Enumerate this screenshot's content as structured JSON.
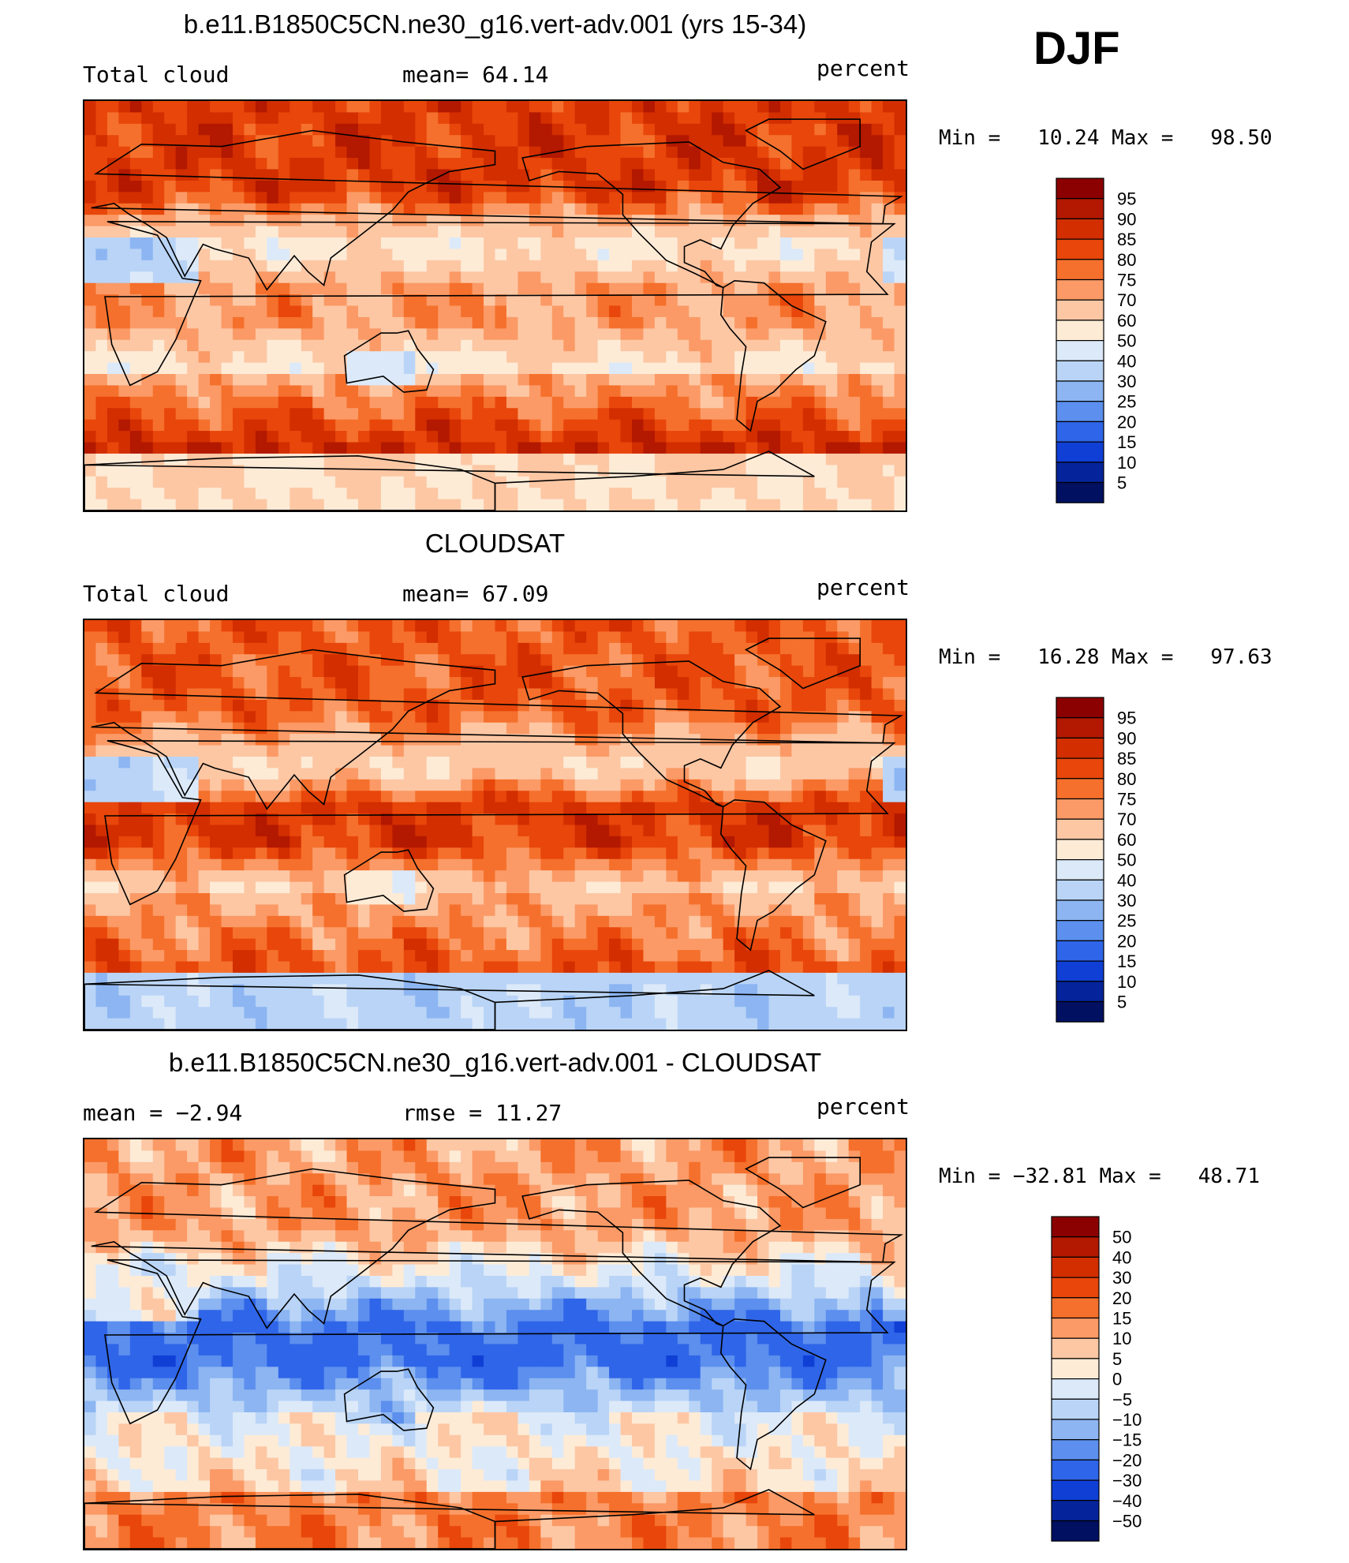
{
  "season": "DJF",
  "chart_data": [
    {
      "type": "heatmap",
      "title": "b.e11.B1850C5CN.ne30_g16.vert-adv.001 (yrs 15-34)",
      "left_label": "Total cloud",
      "center_label": "mean=   64.14",
      "right_label": "percent",
      "mean": 64.14,
      "min": 10.24,
      "max": 98.5,
      "minmax_text": "Min =   10.24 Max =   98.50",
      "levels": [
        "95",
        "90",
        "85",
        "80",
        "75",
        "70",
        "60",
        "50",
        "40",
        "30",
        "25",
        "20",
        "15",
        "10",
        "5"
      ],
      "colors": [
        "#8b0000",
        "#b31800",
        "#d22e00",
        "#e8460a",
        "#f5702c",
        "#fb9a66",
        "#fdc7a4",
        "#fdebd6",
        "#dce9f9",
        "#b9d4f6",
        "#8cb5f2",
        "#5c8fee",
        "#2f65e8",
        "#103fd6",
        "#05249c",
        "#011060"
      ],
      "region_values": {
        "north_band": 85,
        "subtropics": 55,
        "itcz": 72,
        "southern_ocean": 90,
        "antarctic": 60,
        "sahara": 30,
        "australia": 35
      }
    },
    {
      "type": "heatmap",
      "title": "CLOUDSAT",
      "left_label": "Total cloud",
      "center_label": "mean=   67.09",
      "right_label": "percent",
      "mean": 67.09,
      "min": 16.28,
      "max": 97.63,
      "minmax_text": "Min =   16.28 Max =   97.63",
      "levels": [
        "95",
        "90",
        "85",
        "80",
        "75",
        "70",
        "60",
        "50",
        "40",
        "30",
        "25",
        "20",
        "15",
        "10",
        "5"
      ],
      "colors": [
        "#8b0000",
        "#b31800",
        "#d22e00",
        "#e8460a",
        "#f5702c",
        "#fb9a66",
        "#fdc7a4",
        "#fdebd6",
        "#dce9f9",
        "#b9d4f6",
        "#8cb5f2",
        "#5c8fee",
        "#2f65e8",
        "#103fd6",
        "#05249c",
        "#011060"
      ],
      "region_values": {
        "north_band": 80,
        "subtropics": 60,
        "itcz": 85,
        "southern_ocean": 82,
        "antarctic": 35,
        "sahara": 28,
        "australia": 50
      }
    },
    {
      "type": "heatmap",
      "title": "b.e11.B1850C5CN.ne30_g16.vert-adv.001 - CLOUDSAT",
      "left_label": "mean =   −2.94",
      "center_label": "rmse =   11.27",
      "right_label": "percent",
      "mean": -2.94,
      "rmse": 11.27,
      "min": -32.81,
      "max": 48.71,
      "minmax_text": "Min = −32.81 Max =   48.71",
      "levels": [
        "50",
        "40",
        "30",
        "20",
        "15",
        "10",
        "5",
        "0",
        "−5",
        "−10",
        "−15",
        "−20",
        "−30",
        "−40",
        "−50"
      ],
      "colors": [
        "#8b0000",
        "#b31800",
        "#d22e00",
        "#e8460a",
        "#f5702c",
        "#fb9a66",
        "#fdc7a4",
        "#fdebd6",
        "#dce9f9",
        "#b9d4f6",
        "#8cb5f2",
        "#5c8fee",
        "#2f65e8",
        "#103fd6",
        "#05249c",
        "#011060"
      ],
      "region_values": {
        "north_band": 12,
        "subtropics": -5,
        "itcz": -22,
        "southern_ocean": 5,
        "antarctic": 15,
        "sahara": 2,
        "australia": -8
      }
    }
  ]
}
